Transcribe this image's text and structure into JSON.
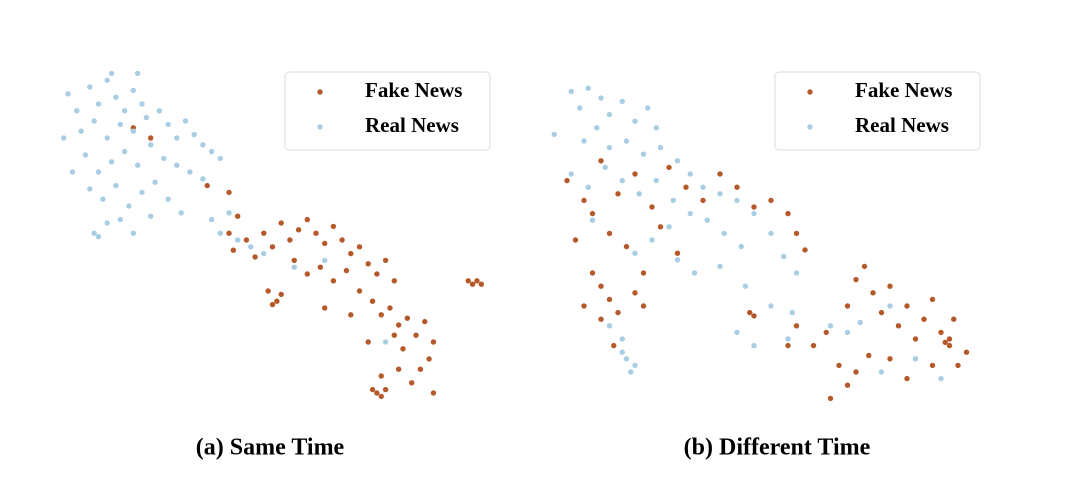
{
  "chart_data": [
    {
      "type": "scatter",
      "title": "(a) Same Time",
      "legend": "upper right",
      "xlim": [
        0,
        100
      ],
      "ylim": [
        0,
        100
      ],
      "series": [
        {
          "name": "Fake News",
          "color": "#b5592a",
          "x": [
            18,
            22,
            35,
            40,
            42,
            40,
            41,
            44,
            46,
            48,
            50,
            52,
            54,
            56,
            58,
            60,
            62,
            64,
            66,
            68,
            70,
            72,
            74,
            76,
            78,
            55,
            58,
            61,
            64,
            67,
            70,
            73,
            75,
            77,
            79,
            81,
            83,
            85,
            87,
            86,
            84,
            80,
            78,
            82,
            75,
            74,
            75,
            76,
            73,
            49,
            51,
            50,
            52,
            95,
            96,
            97,
            98,
            62,
            68,
            72,
            79,
            87
          ],
          "values": [
            83,
            80,
            66,
            64,
            57,
            52,
            47,
            50,
            45,
            52,
            48,
            55,
            50,
            53,
            56,
            52,
            49,
            54,
            50,
            46,
            48,
            43,
            40,
            44,
            38,
            44,
            40,
            42,
            38,
            41,
            35,
            32,
            28,
            30,
            25,
            27,
            22,
            26,
            20,
            15,
            12,
            18,
            22,
            8,
            10,
            5,
            4,
            6,
            6,
            35,
            32,
            31,
            34,
            38,
            37,
            38,
            37,
            30,
            28,
            20,
            12,
            5
          ]
        },
        {
          "name": "Real News",
          "color": "#a9cde3",
          "x": [
            3,
            5,
            8,
            10,
            12,
            14,
            16,
            18,
            20,
            6,
            9,
            12,
            15,
            18,
            21,
            24,
            26,
            28,
            30,
            32,
            34,
            36,
            38,
            7,
            10,
            13,
            16,
            19,
            22,
            25,
            28,
            31,
            34,
            8,
            11,
            14,
            17,
            20,
            23,
            26,
            29,
            9,
            10,
            12,
            15,
            18,
            22,
            36,
            38,
            40,
            42,
            45,
            48,
            55,
            62,
            76,
            4,
            2,
            19,
            13
          ],
          "values": [
            93,
            88,
            95,
            90,
            97,
            92,
            88,
            94,
            90,
            82,
            85,
            80,
            84,
            82,
            86,
            88,
            84,
            80,
            85,
            81,
            78,
            76,
            74,
            75,
            70,
            73,
            76,
            72,
            78,
            74,
            72,
            70,
            68,
            65,
            62,
            66,
            60,
            64,
            67,
            62,
            58,
            52,
            51,
            55,
            56,
            52,
            57,
            56,
            52,
            58,
            50,
            48,
            46,
            42,
            44,
            20,
            70,
            80,
            99,
            99
          ]
        }
      ]
    },
    {
      "type": "scatter",
      "title": "(b) Different Time",
      "legend": "upper right",
      "xlim": [
        0,
        100
      ],
      "ylim": [
        0,
        100
      ],
      "series": [
        {
          "name": "Fake News",
          "color": "#b5592a",
          "x": [
            4,
            8,
            12,
            16,
            20,
            24,
            28,
            32,
            36,
            40,
            44,
            48,
            52,
            56,
            58,
            60,
            6,
            10,
            14,
            18,
            22,
            26,
            30,
            8,
            12,
            14,
            16,
            20,
            22,
            10,
            12,
            15,
            47,
            48,
            56,
            58,
            65,
            70,
            72,
            74,
            76,
            78,
            80,
            82,
            84,
            86,
            88,
            90,
            92,
            94,
            96,
            98,
            95,
            93,
            94,
            68,
            70,
            72,
            75,
            80,
            84,
            90,
            66,
            62
          ],
          "values": [
            68,
            62,
            74,
            64,
            70,
            60,
            72,
            66,
            62,
            70,
            66,
            60,
            62,
            58,
            52,
            47,
            50,
            58,
            52,
            48,
            40,
            54,
            46,
            30,
            36,
            32,
            28,
            34,
            30,
            40,
            26,
            18,
            28,
            27,
            18,
            24,
            22,
            30,
            38,
            42,
            34,
            28,
            36,
            24,
            30,
            20,
            26,
            32,
            22,
            18,
            12,
            16,
            26,
            19,
            20,
            12,
            6,
            10,
            15,
            14,
            8,
            12,
            2,
            18
          ]
        },
        {
          "name": "Real News",
          "color": "#a9cde3",
          "x": [
            1,
            5,
            7,
            9,
            12,
            14,
            17,
            20,
            23,
            25,
            8,
            11,
            14,
            18,
            22,
            26,
            30,
            33,
            36,
            40,
            44,
            48,
            52,
            55,
            58,
            5,
            9,
            13,
            17,
            21,
            25,
            29,
            33,
            37,
            41,
            45,
            28,
            24,
            20,
            30,
            34,
            40,
            46,
            52,
            57,
            14,
            17,
            18,
            19,
            20,
            17,
            44,
            48,
            56,
            66,
            70,
            73,
            80,
            86,
            92,
            78,
            10
          ],
          "values": [
            82,
            95,
            90,
            96,
            93,
            88,
            92,
            86,
            90,
            84,
            80,
            84,
            78,
            80,
            76,
            78,
            74,
            70,
            66,
            64,
            62,
            58,
            52,
            45,
            40,
            70,
            66,
            72,
            68,
            64,
            68,
            62,
            58,
            56,
            52,
            48,
            54,
            50,
            46,
            44,
            40,
            42,
            36,
            30,
            28,
            24,
            20,
            14,
            10,
            12,
            16,
            22,
            18,
            20,
            24,
            22,
            25,
            30,
            14,
            8,
            10,
            56
          ]
        }
      ]
    }
  ]
}
